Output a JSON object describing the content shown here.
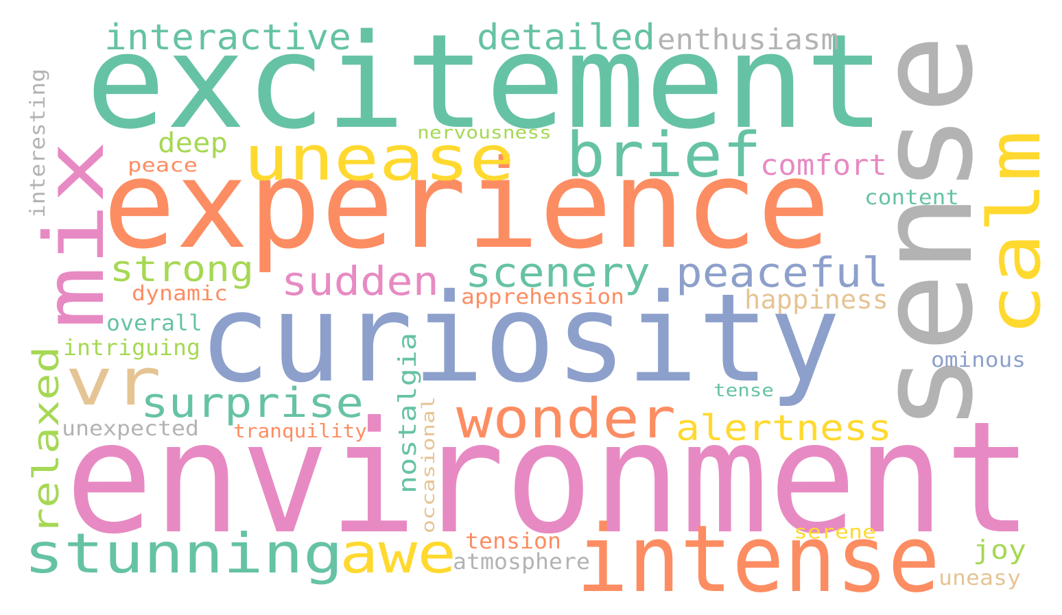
{
  "palette": {
    "teal": "#66c2a5",
    "orange": "#fc8d62",
    "blue": "#8da0cb",
    "pink": "#e78ac3",
    "green": "#a6d854",
    "yellow": "#ffd92f",
    "tan": "#e5c494",
    "gray": "#b3b3b3"
  },
  "words": {
    "environment": "environment",
    "excitement": "excitement",
    "experience": "experience",
    "curiosity": "curiosity",
    "sense": "sense",
    "intense": "intense",
    "mix": "mix",
    "unease": "unease",
    "calm": "calm",
    "brief": "brief",
    "wonder": "wonder",
    "stunning": "stunning",
    "vr": "vr",
    "awe": "awe",
    "scenery": "scenery",
    "peaceful": "peaceful",
    "surprise": "surprise",
    "sudden": "sudden",
    "interactive": "interactive",
    "detailed": "detailed",
    "strong": "strong",
    "alertness": "alertness",
    "relaxed": "relaxed",
    "enthusiasm": "enthusiasm",
    "comfort": "comfort",
    "nostalgia": "nostalgia",
    "deep": "deep",
    "happiness": "happiness",
    "apprehension": "apprehension",
    "interesting": "interesting",
    "intriguing": "intriguing",
    "overall": "overall",
    "dynamic": "dynamic",
    "unexpected": "unexpected",
    "tranquility": "tranquility",
    "occasional": "occasional",
    "atmosphere": "atmosphere",
    "tension": "tension",
    "content": "content",
    "peace": "peace",
    "nervousness": "nervousness",
    "ominous": "ominous",
    "joy": "joy",
    "serene": "serene",
    "tense": "tense",
    "uneasy": "uneasy"
  }
}
